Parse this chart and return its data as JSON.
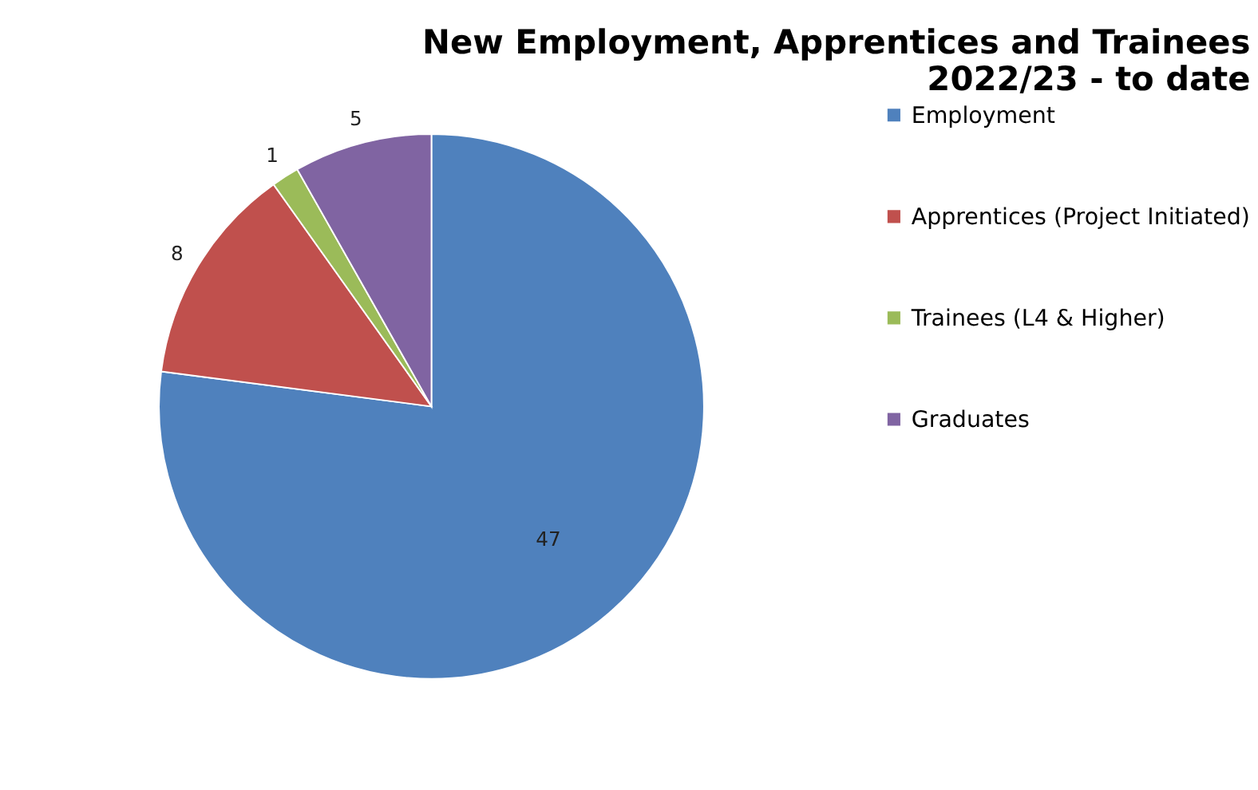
{
  "chart_data": {
    "type": "pie",
    "title": [
      "New Employment, Apprentices and Trainees",
      "2022/23 - to date"
    ],
    "categories": [
      "Employment",
      "Apprentices (Project Initiated)",
      "Trainees (L4 & Higher)",
      "Graduates"
    ],
    "values": [
      47,
      8,
      1,
      5
    ],
    "colors": [
      "#4f81bd",
      "#c0504d",
      "#9bbb59",
      "#8064a2"
    ],
    "data_labels": true,
    "legend": "right"
  }
}
